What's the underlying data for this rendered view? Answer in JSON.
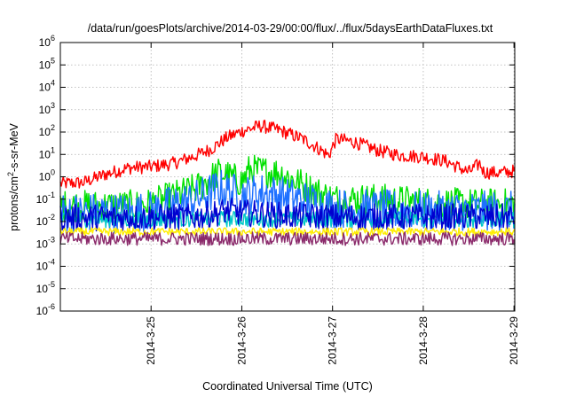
{
  "chart_data": {
    "type": "line",
    "title": "/data/run/goesPlots/archive/2014-03-29/00:00/flux/../flux/5daysEarthDataFluxes.txt",
    "xlabel": "Coordinated Universal Time (UTC)",
    "ylabel_base": "protons/cm",
    "ylabel_sup": "2",
    "ylabel_rest": "-s-sr-MeV",
    "x_range": [
      "2014-03-24T00:00",
      "2014-03-29T00:12"
    ],
    "x_ticks": [
      "2014-3-25",
      "2014-3-26",
      "2014-3-27",
      "2014-3-28",
      "2014-3-29"
    ],
    "y_scale": "log",
    "y_range": [
      1e-06,
      1000000.0
    ],
    "y_ticks": [
      {
        "base": "10",
        "exp": "-6"
      },
      {
        "base": "10",
        "exp": "-5"
      },
      {
        "base": "10",
        "exp": "-4"
      },
      {
        "base": "10",
        "exp": "-3"
      },
      {
        "base": "10",
        "exp": "-2"
      },
      {
        "base": "10",
        "exp": "-1"
      },
      {
        "base": "10",
        "exp": "0"
      },
      {
        "base": "10",
        "exp": "1"
      },
      {
        "base": "10",
        "exp": "2"
      },
      {
        "base": "10",
        "exp": "3"
      },
      {
        "base": "10",
        "exp": "4"
      },
      {
        "base": "10",
        "exp": "5"
      },
      {
        "base": "10",
        "exp": "6"
      }
    ],
    "grid": true,
    "legend": "none",
    "series": [
      {
        "color": "#ff0000",
        "noise": 0.05,
        "points": [
          [
            "2014-03-24T00:00",
            0.5
          ],
          [
            "2014-03-24T06:00",
            0.55
          ],
          [
            "2014-03-24T12:00",
            1.3
          ],
          [
            "2014-03-24T18:00",
            2.5
          ],
          [
            "2014-03-25T00:00",
            2.8
          ],
          [
            "2014-03-25T06:00",
            4
          ],
          [
            "2014-03-25T09:00",
            6
          ],
          [
            "2014-03-25T12:00",
            9
          ],
          [
            "2014-03-25T16:00",
            18
          ],
          [
            "2014-03-25T20:00",
            55
          ],
          [
            "2014-03-26T00:00",
            110
          ],
          [
            "2014-03-26T05:00",
            190
          ],
          [
            "2014-03-26T10:00",
            120
          ],
          [
            "2014-03-26T16:00",
            50
          ],
          [
            "2014-03-26T20:00",
            20
          ],
          [
            "2014-03-26T23:00",
            9
          ],
          [
            "2014-03-27T01:00",
            50
          ],
          [
            "2014-03-27T06:00",
            35
          ],
          [
            "2014-03-27T12:00",
            15
          ],
          [
            "2014-03-27T18:00",
            9
          ],
          [
            "2014-03-28T00:00",
            8
          ],
          [
            "2014-03-28T06:00",
            5
          ],
          [
            "2014-03-28T12:00",
            1.6
          ],
          [
            "2014-03-28T15:00",
            4
          ],
          [
            "2014-03-28T16:00",
            1.6
          ],
          [
            "2014-03-28T20:00",
            1.5
          ],
          [
            "2014-03-29T00:12",
            1.8
          ]
        ]
      },
      {
        "color": "#00e000",
        "noise": 0.12,
        "points": [
          [
            "2014-03-24T00:00",
            0.05
          ],
          [
            "2014-03-24T18:00",
            0.05
          ],
          [
            "2014-03-25T00:00",
            0.06
          ],
          [
            "2014-03-25T12:00",
            0.3
          ],
          [
            "2014-03-25T18:00",
            1.5
          ],
          [
            "2014-03-26T00:00",
            0.6
          ],
          [
            "2014-03-26T02:00",
            2
          ],
          [
            "2014-03-26T10:00",
            1.5
          ],
          [
            "2014-03-26T18:00",
            0.3
          ],
          [
            "2014-03-27T00:00",
            0.1
          ],
          [
            "2014-03-27T12:00",
            0.1
          ],
          [
            "2014-03-28T00:00",
            0.07
          ],
          [
            "2014-03-28T12:00",
            0.06
          ],
          [
            "2014-03-29T00:12",
            0.06
          ]
        ]
      },
      {
        "color": "#1e70ff",
        "noise": 0.15,
        "points": [
          [
            "2014-03-24T00:00",
            0.025
          ],
          [
            "2014-03-24T18:00",
            0.025
          ],
          [
            "2014-03-25T00:00",
            0.03
          ],
          [
            "2014-03-25T12:00",
            0.1
          ],
          [
            "2014-03-25T18:00",
            0.3
          ],
          [
            "2014-03-26T00:00",
            0.15
          ],
          [
            "2014-03-26T06:00",
            0.2
          ],
          [
            "2014-03-26T18:00",
            0.08
          ],
          [
            "2014-03-27T00:00",
            0.04
          ],
          [
            "2014-03-28T00:00",
            0.03
          ],
          [
            "2014-03-29T00:12",
            0.03
          ]
        ]
      },
      {
        "color": "#00c8c8",
        "noise": 0.06,
        "points": [
          [
            "2014-03-24T00:00",
            0.012
          ],
          [
            "2014-03-26T00:00",
            0.013
          ],
          [
            "2014-03-29T00:12",
            0.012
          ]
        ]
      },
      {
        "color": "#0000d0",
        "noise": 0.1,
        "points": [
          [
            "2014-03-24T00:00",
            0.015
          ],
          [
            "2014-03-25T12:00",
            0.016
          ],
          [
            "2014-03-25T20:00",
            0.03
          ],
          [
            "2014-03-26T00:00",
            0.025
          ],
          [
            "2014-03-26T12:00",
            0.018
          ],
          [
            "2014-03-27T00:00",
            0.016
          ],
          [
            "2014-03-29T00:12",
            0.016
          ]
        ]
      },
      {
        "color": "#ffee00",
        "noise": 0.03,
        "points": [
          [
            "2014-03-24T00:00",
            0.0035
          ],
          [
            "2014-03-29T00:12",
            0.0035
          ]
        ]
      },
      {
        "color": "#8b2a6b",
        "noise": 0.05,
        "points": [
          [
            "2014-03-24T00:00",
            0.0017
          ],
          [
            "2014-03-29T00:12",
            0.0017
          ]
        ]
      }
    ]
  }
}
